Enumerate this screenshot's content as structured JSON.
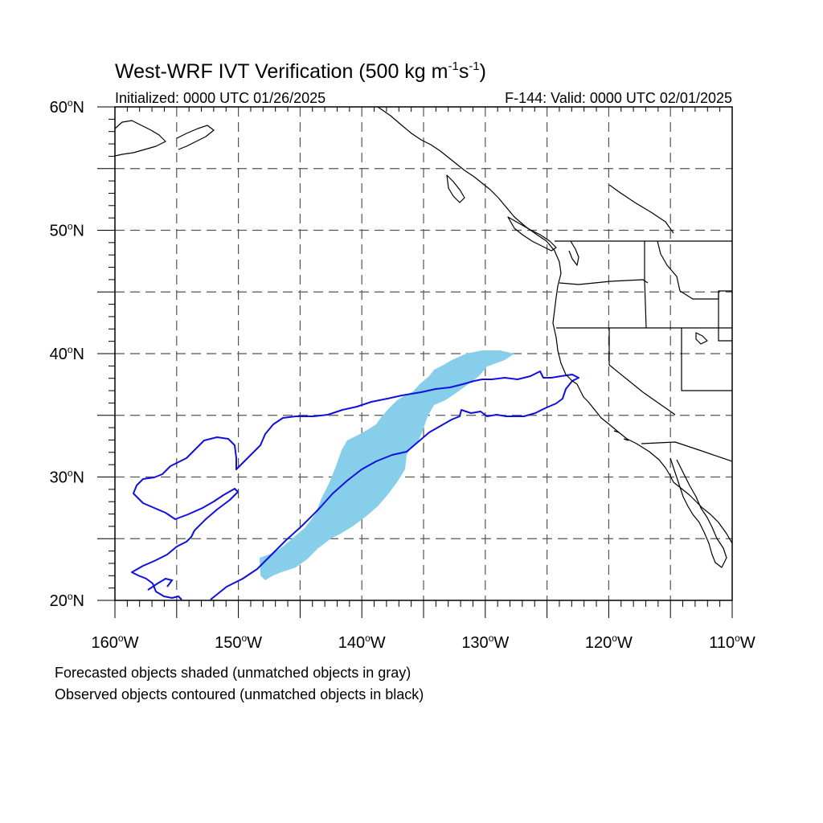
{
  "title": {
    "main": "West-WRF IVT Verification (500 kg m",
    "exp1": "-1",
    "mid": "s",
    "exp2": "-1",
    "close": ")"
  },
  "subtitle": {
    "initialized": "Initialized: 0000 UTC 01/26/2025",
    "valid": "F-144: Valid: 0000 UTC 02/01/2025"
  },
  "map": {
    "lon_range": [
      -160,
      -110
    ],
    "lat_range": [
      20,
      60
    ],
    "grid_lons": [
      -155,
      -150,
      -145,
      -140,
      -135,
      -130,
      -125,
      -120,
      -115
    ],
    "grid_lats": [
      25,
      30,
      35,
      40,
      45,
      50,
      55
    ],
    "forecast_color": "#87ceeb",
    "observed_color": "#1010e0"
  },
  "axes": {
    "lat_labels": [
      {
        "lat": 60,
        "num": "60",
        "hem": "N"
      },
      {
        "lat": 50,
        "num": "50",
        "hem": "N"
      },
      {
        "lat": 40,
        "num": "40",
        "hem": "N"
      },
      {
        "lat": 30,
        "num": "30",
        "hem": "N"
      },
      {
        "lat": 20,
        "num": "20",
        "hem": "N"
      }
    ],
    "lon_labels": [
      {
        "lon": -160,
        "num": "160",
        "hem": "W"
      },
      {
        "lon": -150,
        "num": "150",
        "hem": "W"
      },
      {
        "lon": -140,
        "num": "140",
        "hem": "W"
      },
      {
        "lon": -130,
        "num": "130",
        "hem": "W"
      },
      {
        "lon": -120,
        "num": "120",
        "hem": "W"
      },
      {
        "lon": -110,
        "num": "110",
        "hem": "W"
      }
    ]
  },
  "caption": {
    "line1": "Forecasted objects shaded (unmatched objects in gray)",
    "line2": "Observed objects contoured (unmatched objects in black)"
  }
}
